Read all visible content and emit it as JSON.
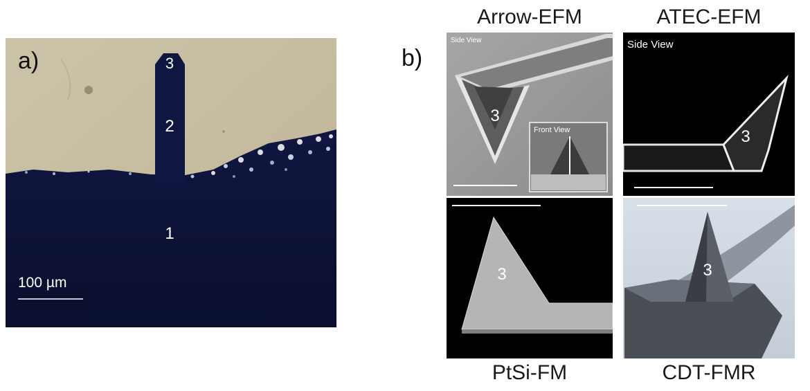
{
  "panel_a": {
    "label": "a)",
    "regions": [
      "3",
      "2",
      "1"
    ],
    "scale_bar": "100 µm"
  },
  "panel_b": {
    "label": "b)",
    "tips": [
      {
        "name": "Arrow-EFM",
        "region": "3",
        "views": [
          "Side View",
          "Front View"
        ]
      },
      {
        "name": "ATEC-EFM",
        "region": "3",
        "views": [
          "Side View"
        ]
      },
      {
        "name": "PtSi-FM",
        "region": "3"
      },
      {
        "name": "CDT-FMR",
        "region": "3"
      }
    ]
  },
  "colors": {
    "background_light": "#c8bea4",
    "substrate_dark": "#0c1236",
    "sem_gray": "#9a9a9a",
    "sem_black": "#000000"
  }
}
